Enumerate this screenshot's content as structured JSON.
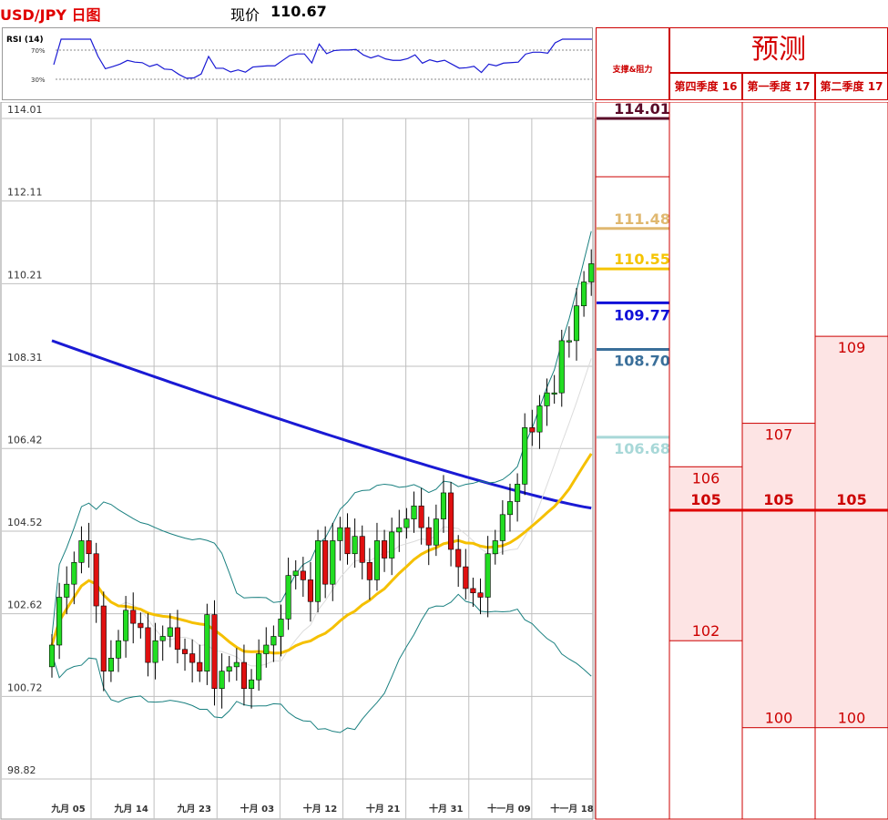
{
  "title": "USD/JPY 日图",
  "price": {
    "label": "现价",
    "value": "110.67"
  },
  "rsi": {
    "label": "RSI (14)",
    "levels": [
      70,
      30
    ],
    "level_labels": [
      "70%",
      "30%"
    ],
    "line_color": "#1a1ad4"
  },
  "forecast": {
    "title": "预测",
    "sr_header": "支撑&阻力",
    "columns": [
      "第四季度 16",
      "第一季度 17",
      "第二季度 17"
    ],
    "ranges": [
      {
        "low": 102,
        "high": 106,
        "target": 105
      },
      {
        "low": 100,
        "high": 107,
        "target": 105
      },
      {
        "low": 100,
        "high": 109,
        "target": 105
      }
    ],
    "target_line": 105
  },
  "chart_data": {
    "type": "candlestick",
    "y_ticks": [
      "114.01",
      "112.11",
      "110.21",
      "108.31",
      "106.42",
      "104.52",
      "102.62",
      "100.72",
      "98.82"
    ],
    "ylim": [
      98.82,
      114.01
    ],
    "x_ticks": [
      "九月 05",
      "九月 14",
      "九月 23",
      "十月 03",
      "十月 12",
      "十月 21",
      "十月 31",
      "十一月 09",
      "十一月 18"
    ],
    "x_tick_index": [
      0,
      7,
      14,
      21,
      28,
      35,
      42,
      49,
      56
    ],
    "closes": [
      101.9,
      103.0,
      103.3,
      103.8,
      104.3,
      104.0,
      102.8,
      101.3,
      101.6,
      102.0,
      102.7,
      102.4,
      102.3,
      101.5,
      102.0,
      102.1,
      102.3,
      101.8,
      101.7,
      101.5,
      101.3,
      102.6,
      100.9,
      101.3,
      101.4,
      101.5,
      100.9,
      101.1,
      101.7,
      101.9,
      102.1,
      102.5,
      103.5,
      103.6,
      103.4,
      102.9,
      104.3,
      103.3,
      104.3,
      104.6,
      104.0,
      104.4,
      103.8,
      103.4,
      104.3,
      103.9,
      104.5,
      104.6,
      104.8,
      105.1,
      104.6,
      104.2,
      104.8,
      105.4,
      104.1,
      103.7,
      103.2,
      103.1,
      103.0,
      104.0,
      104.3,
      104.9,
      105.2,
      105.6,
      106.9,
      106.8,
      107.4,
      107.7,
      107.7,
      108.9,
      108.9,
      109.7,
      110.25,
      110.67
    ],
    "levels": [
      {
        "value": 114.01,
        "label": "114.01",
        "color": "#5a0a28"
      },
      {
        "value": 111.48,
        "label": "111.48",
        "color": "#e0b870"
      },
      {
        "value": 110.55,
        "label": "110.55",
        "color": "#f5c400"
      },
      {
        "value": 109.77,
        "label": "109.77",
        "color": "#1010d8"
      },
      {
        "value": 108.7,
        "label": "108.70",
        "color": "#3a6f9a"
      },
      {
        "value": 106.68,
        "label": "106.68",
        "color": "#a8d8d8"
      }
    ],
    "colors": {
      "up": "#22dd22",
      "down": "#e01010",
      "ma_blue": "#1a1ad4",
      "ma_yellow": "#f5c000",
      "band": "#1a8080",
      "ma_thin": "#dcdcdc"
    },
    "grid": true
  }
}
